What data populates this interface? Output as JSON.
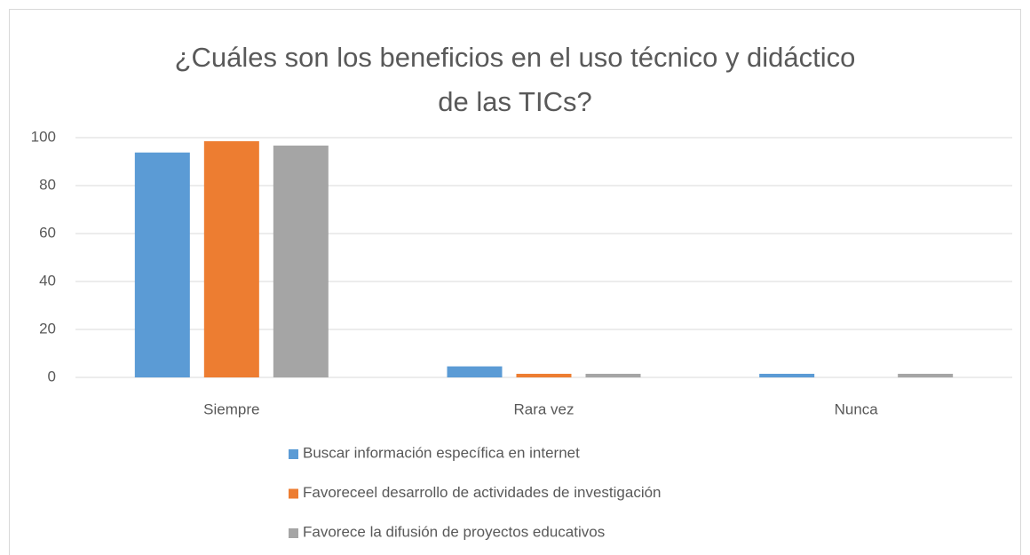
{
  "chart_data": {
    "type": "bar",
    "title": "¿Cuáles son los beneficios en el uso técnico y didáctico de las TICs?",
    "categories": [
      "Siempre",
      "Rara vez",
      "Nunca"
    ],
    "series": [
      {
        "name": "Buscar información específica en internet",
        "color": "#5b9bd5",
        "values": [
          93.8,
          4.6,
          1.5
        ]
      },
      {
        "name": "Favoreceel desarrollo de actividades de investigación",
        "color": "#ed7d31",
        "values": [
          98.5,
          1.5,
          0
        ]
      },
      {
        "name": "Favorece la difusión de proyectos educativos",
        "color": "#a5a5a5",
        "values": [
          96.7,
          1.5,
          1.5
        ]
      }
    ],
    "ylim": [
      0,
      100
    ],
    "yticks": [
      0,
      20,
      40,
      60,
      80,
      100
    ],
    "grid": true,
    "legend": "bottom"
  }
}
